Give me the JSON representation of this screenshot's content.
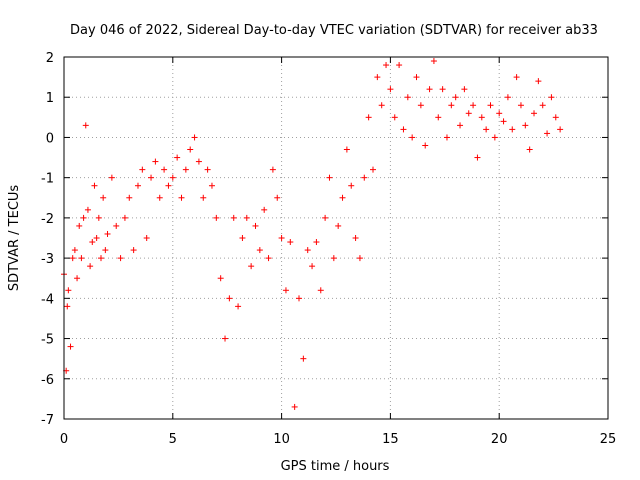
{
  "chart_data": {
    "type": "scatter",
    "title": "Day 046 of 2022, Sidereal Day-to-day VTEC variation (SDTVAR) for receiver ab33",
    "xlabel": "GPS time / hours",
    "ylabel": "SDTVAR / TECUs",
    "xlim": [
      0,
      25
    ],
    "ylim": [
      -7,
      2
    ],
    "xticks": [
      0,
      5,
      10,
      15,
      20,
      25
    ],
    "yticks": [
      -7,
      -6,
      -5,
      -4,
      -3,
      -2,
      -1,
      0,
      1,
      2
    ],
    "xtick_labels": [
      "0",
      "5",
      "10",
      "15",
      "20",
      "25"
    ],
    "ytick_labels": [
      "-7",
      "-6",
      "-5",
      "-4",
      "-3",
      "-2",
      "-1",
      "0",
      "1",
      "2"
    ],
    "grid": true,
    "marker": "+",
    "color": "#ff0000",
    "series": [
      {
        "name": "SDTVAR",
        "x": [
          0.0,
          0.1,
          0.15,
          0.2,
          0.3,
          0.4,
          0.5,
          0.6,
          0.7,
          0.8,
          0.9,
          1.0,
          1.1,
          1.2,
          1.3,
          1.4,
          1.5,
          1.6,
          1.7,
          1.8,
          1.9,
          2.0,
          2.2,
          2.4,
          2.6,
          2.8,
          3.0,
          3.2,
          3.4,
          3.6,
          3.8,
          4.0,
          4.2,
          4.4,
          4.6,
          4.8,
          5.0,
          5.2,
          5.4,
          5.6,
          5.8,
          6.0,
          6.2,
          6.4,
          6.6,
          6.8,
          7.0,
          7.2,
          7.4,
          7.6,
          7.8,
          8.0,
          8.2,
          8.4,
          8.6,
          8.8,
          9.0,
          9.2,
          9.4,
          9.6,
          9.8,
          10.0,
          10.2,
          10.4,
          10.6,
          10.8,
          11.0,
          11.2,
          11.4,
          11.6,
          11.8,
          12.0,
          12.2,
          12.4,
          12.6,
          12.8,
          13.0,
          13.2,
          13.4,
          13.6,
          13.8,
          14.0,
          14.2,
          14.4,
          14.6,
          14.8,
          15.0,
          15.2,
          15.4,
          15.6,
          15.8,
          16.0,
          16.2,
          16.4,
          16.6,
          16.8,
          17.0,
          17.2,
          17.4,
          17.6,
          17.8,
          18.0,
          18.2,
          18.4,
          18.6,
          18.8,
          19.0,
          19.2,
          19.4,
          19.6,
          19.8,
          20.0,
          20.2,
          20.4,
          20.6,
          20.8,
          21.0,
          21.2,
          21.4,
          21.6,
          21.8,
          22.0,
          22.2,
          22.4,
          22.6,
          22.8
        ],
        "y": [
          -3.4,
          -5.8,
          -4.2,
          -3.8,
          -5.2,
          -3.0,
          -2.8,
          -3.5,
          -2.2,
          -3.0,
          -2.0,
          0.3,
          -1.8,
          -3.2,
          -2.6,
          -1.2,
          -2.5,
          -2.0,
          -3.0,
          -1.5,
          -2.8,
          -2.4,
          -1.0,
          -2.2,
          -3.0,
          -2.0,
          -1.5,
          -2.8,
          -1.2,
          -0.8,
          -2.5,
          -1.0,
          -0.6,
          -1.5,
          -0.8,
          -1.2,
          -1.0,
          -0.5,
          -1.5,
          -0.8,
          -0.3,
          0.0,
          -0.6,
          -1.5,
          -0.8,
          -1.2,
          -2.0,
          -3.5,
          -5.0,
          -4.0,
          -2.0,
          -4.2,
          -2.5,
          -2.0,
          -3.2,
          -2.2,
          -2.8,
          -1.8,
          -3.0,
          -0.8,
          -1.5,
          -2.5,
          -3.8,
          -2.6,
          -6.7,
          -4.0,
          -5.5,
          -2.8,
          -3.2,
          -2.6,
          -3.8,
          -2.0,
          -1.0,
          -3.0,
          -2.2,
          -1.5,
          -0.3,
          -1.2,
          -2.5,
          -3.0,
          -1.0,
          0.5,
          -0.8,
          1.5,
          0.8,
          1.8,
          1.2,
          0.5,
          1.8,
          0.2,
          1.0,
          0.0,
          1.5,
          0.8,
          -0.2,
          1.2,
          1.9,
          0.5,
          1.2,
          0.0,
          0.8,
          1.0,
          0.3,
          1.2,
          0.6,
          0.8,
          -0.5,
          0.5,
          0.2,
          0.8,
          0.0,
          0.6,
          0.4,
          1.0,
          0.2,
          1.5,
          0.8,
          0.3,
          -0.3,
          0.6,
          1.4,
          0.8,
          0.1,
          1.0,
          0.5,
          0.2
        ]
      }
    ]
  }
}
